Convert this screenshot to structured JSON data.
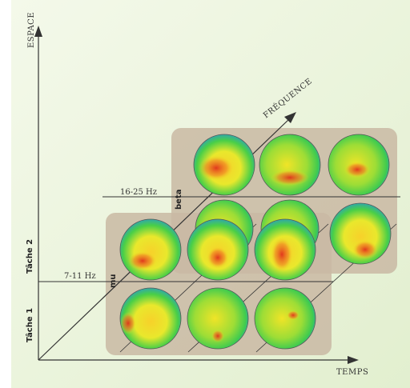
{
  "axes": {
    "vertical": "ESPACE",
    "horizontal": "TEMPS",
    "depth": "FRÉQUENCE"
  },
  "tasks": [
    "Tâche 1",
    "Tâche 2"
  ],
  "bands": [
    {
      "name": "mu",
      "range": "7-11 Hz"
    },
    {
      "name": "beta",
      "range": "16-25 Hz"
    }
  ],
  "colors": {
    "background": "#e9f3d8",
    "panel": "#c9b9a3",
    "axis": "#333333",
    "scalp_low": "#1f8fd6",
    "scalp_mid": "#3fcf4a",
    "scalp_high": "#f2e626",
    "scalp_peak": "#e0301c"
  }
}
